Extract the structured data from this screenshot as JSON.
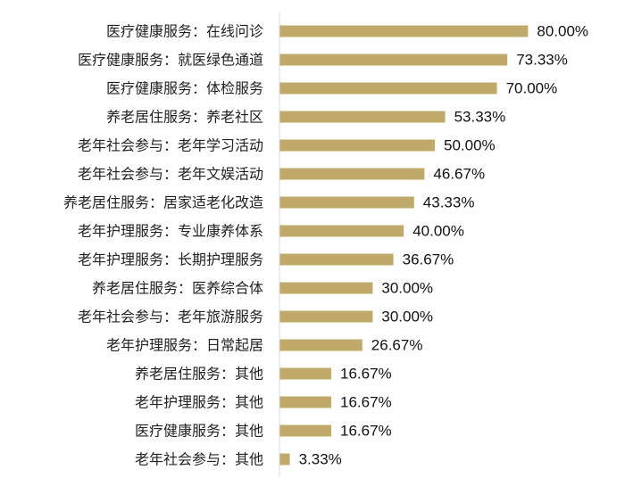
{
  "chart_data": {
    "type": "bar",
    "orientation": "horizontal",
    "categories": [
      "医疗健康服务：在线问诊",
      "医疗健康服务：就医绿色通道",
      "医疗健康服务：体检服务",
      "养老居住服务：养老社区",
      "老年社会参与：老年学习活动",
      "老年社会参与：老年文娱活动",
      "养老居住服务：居家适老化改造",
      "老年护理服务：专业康养体系",
      "老年护理服务：长期护理服务",
      "养老居住服务：医养综合体",
      "老年社会参与：老年旅游服务",
      "老年护理服务：日常起居",
      "养老居住服务：其他",
      "老年护理服务：其他",
      "医疗健康服务：其他",
      "老年社会参与：其他"
    ],
    "values": [
      80.0,
      73.33,
      70.0,
      53.33,
      50.0,
      46.67,
      43.33,
      40.0,
      36.67,
      30.0,
      30.0,
      26.67,
      16.67,
      16.67,
      16.67,
      3.33
    ],
    "value_labels": [
      "80.00%",
      "73.33%",
      "70.00%",
      "53.33%",
      "50.00%",
      "46.67%",
      "43.33%",
      "40.00%",
      "36.67%",
      "30.00%",
      "30.00%",
      "26.67%",
      "16.67%",
      "16.67%",
      "16.67%",
      "3.33%"
    ],
    "xlim": [
      0,
      100
    ],
    "unit": "%",
    "bar_color": "#BFAA6C",
    "axis_color": "#D9D9D9",
    "grid": false,
    "legend": "none"
  }
}
